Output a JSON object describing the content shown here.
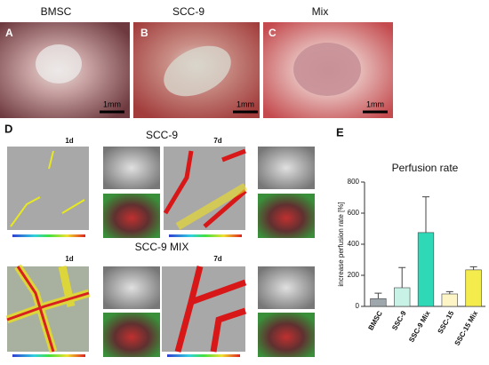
{
  "photos": [
    {
      "label": "A",
      "title": "BMSC",
      "scale": "1mm"
    },
    {
      "label": "B",
      "title": "SCC-9",
      "scale": "1mm"
    },
    {
      "label": "C",
      "title": "Mix",
      "scale": "1mm"
    }
  ],
  "panel_d": {
    "label": "D",
    "rows": [
      {
        "title": "SCC-9",
        "day1": "1d",
        "day7": "7d"
      },
      {
        "title": "SCC-9 MIX",
        "day1": "1d",
        "day7": "7d"
      }
    ]
  },
  "panel_e": {
    "label": "E"
  },
  "chart_data": {
    "type": "bar",
    "title": "Perfusion rate",
    "y_label": "increase perfusion rate [%]",
    "categories": [
      "BMSC",
      "SSC-9",
      "SSC-9 Mix",
      "SSC-15",
      "SSC-15 Mix"
    ],
    "values": [
      50,
      120,
      475,
      80,
      235
    ],
    "errors": [
      35,
      130,
      230,
      15,
      20
    ],
    "colors": [
      "#9ea7ab",
      "#c9f2e6",
      "#2fd8b6",
      "#fdf5c6",
      "#f4ec4c"
    ],
    "ylim": [
      0,
      800
    ],
    "yticks": [
      0,
      200,
      400,
      600,
      800
    ]
  }
}
